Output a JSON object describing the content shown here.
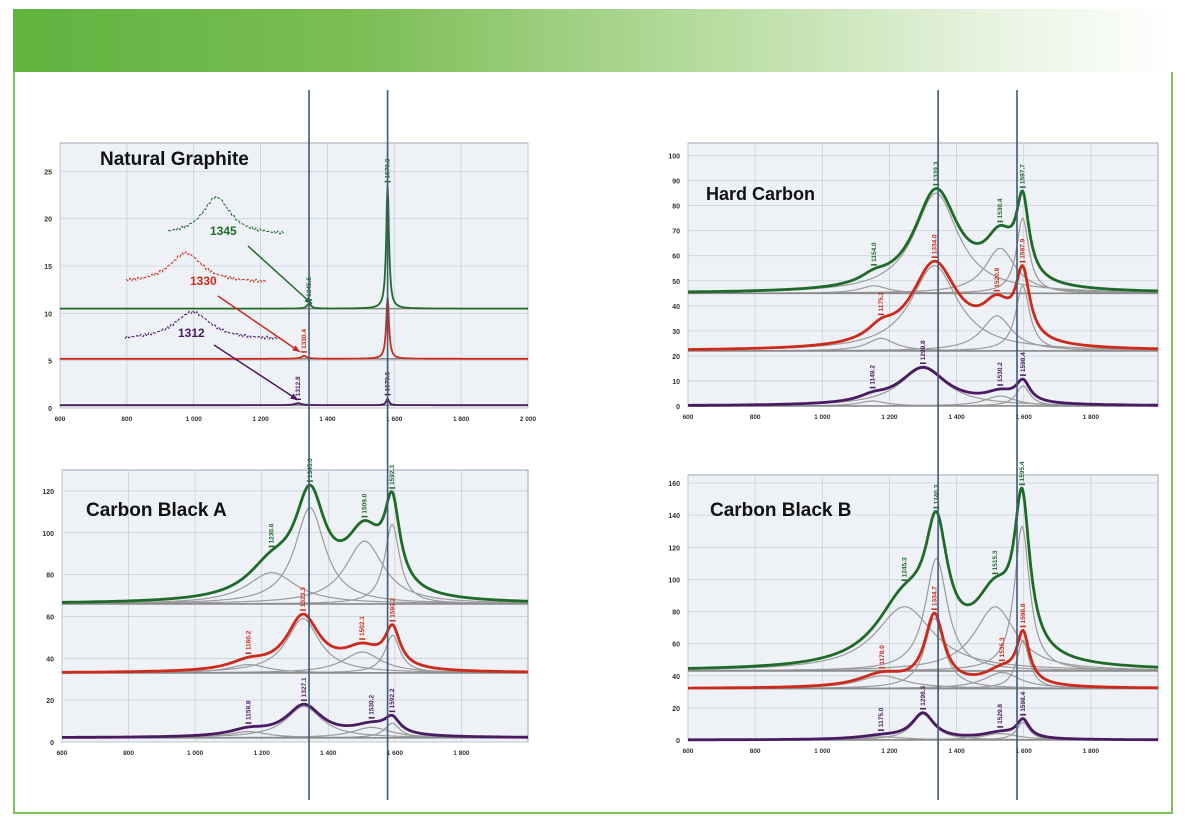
{
  "colors": {
    "green": "#1e6b28",
    "red": "#cc2a1a",
    "purple": "#4a1b63",
    "component": "#9a9a9a",
    "plot_bg": "#eef2f6",
    "grid": "#c7d0da",
    "guide": "#3d5a7a"
  },
  "guide_lines_x": [
    1345,
    1580
  ],
  "chart_data": [
    {
      "type": "line",
      "title": "Natural Graphite",
      "xlim": [
        600,
        2000
      ],
      "ylim": [
        0,
        28
      ],
      "xticks": [
        600,
        800,
        1000,
        1200,
        1400,
        1600,
        1800,
        2000
      ],
      "xticklabels": [
        "600",
        "800",
        "1 000",
        "1 200",
        "1 400",
        "1 600",
        "1 800",
        "2 000"
      ],
      "yticks": [
        0,
        5,
        10,
        15,
        20,
        25
      ],
      "series": [
        {
          "color": "green",
          "baseline": 10.5,
          "peaks": [
            [
              1345,
              0.5,
              15
            ],
            [
              1580,
              13,
              10
            ]
          ],
          "labels": [
            {
              "x": 1345,
              "text": "1345.5"
            },
            {
              "x": 1580,
              "text": "1579.3"
            }
          ]
        },
        {
          "color": "red",
          "baseline": 5.2,
          "peaks": [
            [
              1330,
              0.3,
              20
            ],
            [
              1580,
              6.5,
              10
            ]
          ],
          "labels": [
            {
              "x": 1330,
              "text": "1330.4"
            }
          ]
        },
        {
          "color": "purple",
          "baseline": 0.3,
          "peaks": [
            [
              1312,
              0.2,
              25
            ],
            [
              1580,
              0.7,
              10
            ]
          ],
          "labels": [
            {
              "x": 1312,
              "text": "1312.8"
            },
            {
              "x": 1580,
              "text": "1579.5"
            }
          ]
        }
      ],
      "insets": [
        {
          "color": "green",
          "value": "1345"
        },
        {
          "color": "red",
          "value": "1330"
        },
        {
          "color": "purple",
          "value": "1312"
        }
      ]
    },
    {
      "type": "line",
      "title": "Hard Carbon",
      "xlim": [
        600,
        2000
      ],
      "ylim": [
        0,
        105
      ],
      "xticks": [
        600,
        800,
        1000,
        1200,
        1400,
        1600,
        1800
      ],
      "xticklabels": [
        "600",
        "800",
        "1 000",
        "1 200",
        "1 400",
        "1 600",
        "1 800"
      ],
      "yticks": [
        0,
        10,
        20,
        30,
        40,
        50,
        60,
        70,
        80,
        90,
        100
      ],
      "series": [
        {
          "color": "green",
          "baseline": 45,
          "peaks": [
            [
              1154,
              3,
              100
            ],
            [
              1339,
              40,
              160
            ],
            [
              1530,
              18,
              110
            ],
            [
              1597,
              30,
              45
            ]
          ],
          "labels": [
            {
              "x": 1154,
              "text": "1154.0"
            },
            {
              "x": 1339,
              "text": "1339.3"
            },
            {
              "x": 1530,
              "text": "1530.4"
            },
            {
              "x": 1597,
              "text": "1597.7"
            }
          ]
        },
        {
          "color": "red",
          "baseline": 22,
          "peaks": [
            [
              1175,
              5,
              100
            ],
            [
              1334,
              34,
              170
            ],
            [
              1520,
              14,
              110
            ],
            [
              1597,
              26,
              50
            ]
          ],
          "labels": [
            {
              "x": 1175,
              "text": "1175.2"
            },
            {
              "x": 1334,
              "text": "1334.0"
            },
            {
              "x": 1520,
              "text": "1520.8"
            },
            {
              "x": 1597,
              "text": "1597.9"
            }
          ]
        },
        {
          "color": "purple",
          "baseline": 0,
          "peaks": [
            [
              1150,
              2,
              100
            ],
            [
              1300,
              15,
              170
            ],
            [
              1530,
              4,
              110
            ],
            [
              1598,
              8,
              50
            ]
          ],
          "labels": [
            {
              "x": 1150,
              "text": "1149.2"
            },
            {
              "x": 1300,
              "text": "1299.8"
            },
            {
              "x": 1530,
              "text": "1530.2"
            },
            {
              "x": 1598,
              "text": "1598.4"
            }
          ]
        }
      ]
    },
    {
      "type": "line",
      "title": "Carbon Black A",
      "xlim": [
        600,
        2000
      ],
      "ylim": [
        0,
        130
      ],
      "xticks": [
        600,
        800,
        1000,
        1200,
        1400,
        1600,
        1800
      ],
      "xticklabels": [
        "600",
        "800",
        "1 000",
        "1 200",
        "1 400",
        "1 600",
        "1 800"
      ],
      "yticks": [
        0,
        20,
        40,
        60,
        80,
        100,
        120
      ],
      "series": [
        {
          "color": "green",
          "baseline": 66,
          "peaks": [
            [
              1230,
              15,
              180
            ],
            [
              1345,
              46,
              110
            ],
            [
              1509,
              30,
              140
            ],
            [
              1592,
              38,
              55
            ]
          ],
          "labels": [
            {
              "x": 1230,
              "text": "1230.6"
            },
            {
              "x": 1345,
              "text": "1345.0"
            },
            {
              "x": 1509,
              "text": "1509.0"
            },
            {
              "x": 1592,
              "text": "1592.3"
            }
          ]
        },
        {
          "color": "red",
          "baseline": 33,
          "peaks": [
            [
              1160,
              4,
              140
            ],
            [
              1324,
              26,
              120
            ],
            [
              1502,
              10,
              140
            ],
            [
              1593,
              18,
              55
            ]
          ],
          "labels": [
            {
              "x": 1160,
              "text": "1160.2"
            },
            {
              "x": 1324,
              "text": "1323.3"
            },
            {
              "x": 1502,
              "text": "1502.1"
            },
            {
              "x": 1593,
              "text": "1593.2"
            }
          ]
        },
        {
          "color": "purple",
          "baseline": 2,
          "peaks": [
            [
              1160,
              3,
              140
            ],
            [
              1327,
              15,
              130
            ],
            [
              1530,
              5,
              140
            ],
            [
              1592,
              7,
              55
            ]
          ],
          "labels": [
            {
              "x": 1160,
              "text": "1159.8"
            },
            {
              "x": 1327,
              "text": "1327.1"
            },
            {
              "x": 1530,
              "text": "1530.2"
            },
            {
              "x": 1592,
              "text": "1592.2"
            }
          ]
        }
      ]
    },
    {
      "type": "line",
      "title": "Carbon Black B",
      "xlim": [
        600,
        2000
      ],
      "ylim": [
        0,
        165
      ],
      "xticks": [
        600,
        800,
        1000,
        1200,
        1400,
        1600,
        1800
      ],
      "xticklabels": [
        "600",
        "800",
        "1 000",
        "1 200",
        "1 400",
        "1 600",
        "1 800"
      ],
      "yticks": [
        0,
        20,
        40,
        60,
        80,
        100,
        120,
        140,
        160
      ],
      "series": [
        {
          "color": "green",
          "baseline": 43,
          "peaks": [
            [
              1245,
              40,
              210
            ],
            [
              1340,
              70,
              80
            ],
            [
              1515,
              40,
              150
            ],
            [
              1595,
              90,
              55
            ]
          ],
          "labels": [
            {
              "x": 1245,
              "text": "1245.3"
            },
            {
              "x": 1340,
              "text": "1340.3"
            },
            {
              "x": 1515,
              "text": "1515.3"
            },
            {
              "x": 1595,
              "text": "1595.4"
            }
          ]
        },
        {
          "color": "red",
          "baseline": 32,
          "peaks": [
            [
              1178,
              8,
              170
            ],
            [
              1334,
              44,
              70
            ],
            [
              1535,
              10,
              130
            ],
            [
              1598,
              30,
              45
            ]
          ],
          "labels": [
            {
              "x": 1178,
              "text": "1178.0"
            },
            {
              "x": 1334,
              "text": "1334.7"
            },
            {
              "x": 1535,
              "text": "1535.3"
            },
            {
              "x": 1598,
              "text": "1598.8"
            }
          ]
        },
        {
          "color": "purple",
          "baseline": 0,
          "peaks": [
            [
              1175,
              2,
              170
            ],
            [
              1300,
              16,
              80
            ],
            [
              1530,
              4,
              130
            ],
            [
              1598,
              11,
              45
            ]
          ],
          "labels": [
            {
              "x": 1175,
              "text": "1175.0"
            },
            {
              "x": 1300,
              "text": "1298.3"
            },
            {
              "x": 1530,
              "text": "1529.8"
            },
            {
              "x": 1598,
              "text": "1598.4"
            }
          ]
        }
      ]
    }
  ]
}
